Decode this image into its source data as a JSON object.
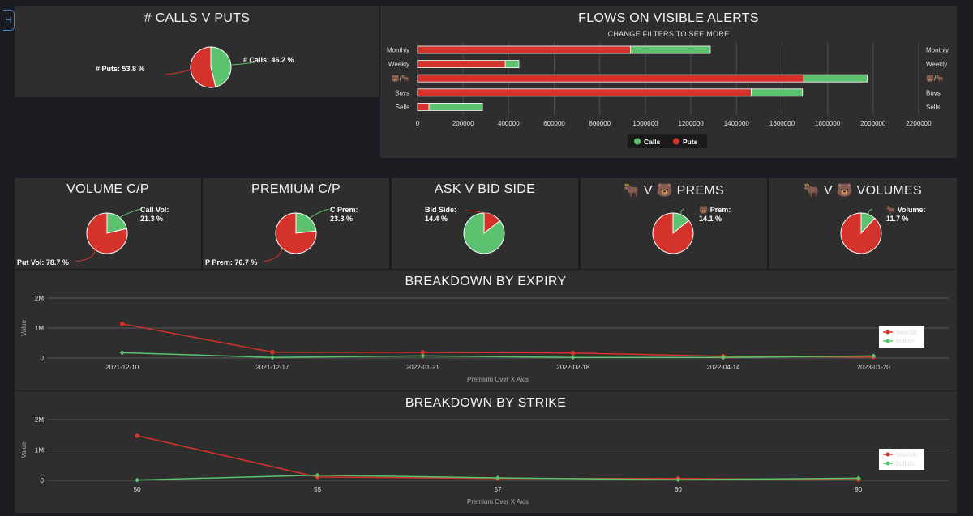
{
  "edge_button": "H",
  "chart_data": [
    {
      "id": "calls_puts",
      "type": "pie",
      "title": "# CALLS V PUTS",
      "slices": [
        {
          "label": "# Calls",
          "value": 46.2,
          "text": "# Calls: 46.2 %",
          "color": "#5cc26f"
        },
        {
          "label": "# Puts",
          "value": 53.8,
          "text": "# Puts: 53.8 %",
          "color": "#d4332b"
        }
      ]
    },
    {
      "id": "flows",
      "type": "bar",
      "orientation": "horizontal",
      "stacked": true,
      "title": "FLOWS ON VISIBLE ALERTS",
      "subtitle": "CHANGE FILTERS TO SEE MORE",
      "categories": [
        "Monthly",
        "Weekly",
        "🐻/🐂",
        "Buys",
        "Sells"
      ],
      "series": [
        {
          "name": "Puts",
          "color": "#d4332b",
          "values": [
            935000,
            385000,
            1695000,
            1465000,
            50000
          ]
        },
        {
          "name": "Calls",
          "color": "#5cc26f",
          "values": [
            350000,
            60000,
            280000,
            225000,
            235000
          ]
        }
      ],
      "xlim": [
        0,
        2200000
      ],
      "xticks": [
        "0",
        "200000",
        "400000",
        "600000",
        "800000",
        "1000000",
        "1200000",
        "1400000",
        "1600000",
        "1800000",
        "2000000",
        "2200000"
      ],
      "legend": "bottom"
    },
    {
      "id": "volume_cp",
      "type": "pie",
      "title": "VOLUME C/P",
      "slices": [
        {
          "label": "Call Vol",
          "value": 21.3,
          "text": "Call Vol:|21.3 %",
          "color": "#5cc26f"
        },
        {
          "label": "Put Vol",
          "value": 78.7,
          "text": "Put Vol: 78.7 %",
          "color": "#d4332b"
        }
      ]
    },
    {
      "id": "premium_cp",
      "type": "pie",
      "title": "PREMIUM C/P",
      "slices": [
        {
          "label": "C Prem",
          "value": 23.3,
          "text": "C Prem:|23.3 %",
          "color": "#5cc26f"
        },
        {
          "label": "P Prem",
          "value": 76.7,
          "text": "P Prem: 76.7 %",
          "color": "#d4332b"
        }
      ]
    },
    {
      "id": "ask_bid",
      "type": "pie",
      "title": "ASK V BID SIDE",
      "slices": [
        {
          "label": "Bid Side",
          "value": 14.4,
          "text": "Bid Side:|14.4 %",
          "color": "#d4332b"
        },
        {
          "label": "Ask Side",
          "value": 85.6,
          "text": "",
          "color": "#5cc26f"
        }
      ]
    },
    {
      "id": "prems",
      "type": "pie",
      "title": "🐂 V 🐻 PREMS",
      "slices": [
        {
          "label": "🐻 Prem",
          "value": 14.1,
          "text": "🐻 Prem:|14.1 %",
          "color": "#5cc26f"
        },
        {
          "label": "🐂 Prem",
          "value": 85.9,
          "text": "",
          "color": "#d4332b"
        }
      ]
    },
    {
      "id": "volumes",
      "type": "pie",
      "title": "🐂 V 🐻 VOLUMES",
      "slices": [
        {
          "label": "🐂 Volume",
          "value": 11.7,
          "text": "🐂 Volume:|11.7 %",
          "color": "#5cc26f"
        },
        {
          "label": "🐻 Volume",
          "value": 88.3,
          "text": "",
          "color": "#d4332b"
        }
      ]
    },
    {
      "id": "expiry",
      "type": "line",
      "title": "BREAKDOWN BY EXPIRY",
      "categories": [
        "2021-12-10",
        "2021-12-17",
        "2022-01-21",
        "2022-02-18",
        "2022-04-14",
        "2023-01-20"
      ],
      "series": [
        {
          "name": "bearish",
          "color": "#d4332b",
          "values": [
            1140000,
            200000,
            190000,
            170000,
            60000,
            30000
          ]
        },
        {
          "name": "bullish",
          "color": "#5cc26f",
          "values": [
            180000,
            20000,
            70000,
            20000,
            20000,
            70000
          ]
        }
      ],
      "ylim": [
        0,
        2000000
      ],
      "yticks": [
        "0",
        "1M",
        "2M"
      ],
      "ylabel": "Value",
      "xlabel": "Premium Over X Axis",
      "legend": "right"
    },
    {
      "id": "strike",
      "type": "line",
      "title": "BREAKDOWN BY STRIKE",
      "categories": [
        "50",
        "55",
        "57",
        "60",
        "90"
      ],
      "series": [
        {
          "name": "bearish",
          "color": "#d4332b",
          "values": [
            1470000,
            110000,
            60000,
            60000,
            20000
          ]
        },
        {
          "name": "bullish",
          "color": "#5cc26f",
          "values": [
            10000,
            170000,
            80000,
            20000,
            70000
          ]
        }
      ],
      "ylim": [
        0,
        2000000
      ],
      "yticks": [
        "0",
        "1M",
        "2M"
      ],
      "ylabel": "Value",
      "xlabel": "Premium Over X Axis",
      "legend": "right"
    }
  ]
}
